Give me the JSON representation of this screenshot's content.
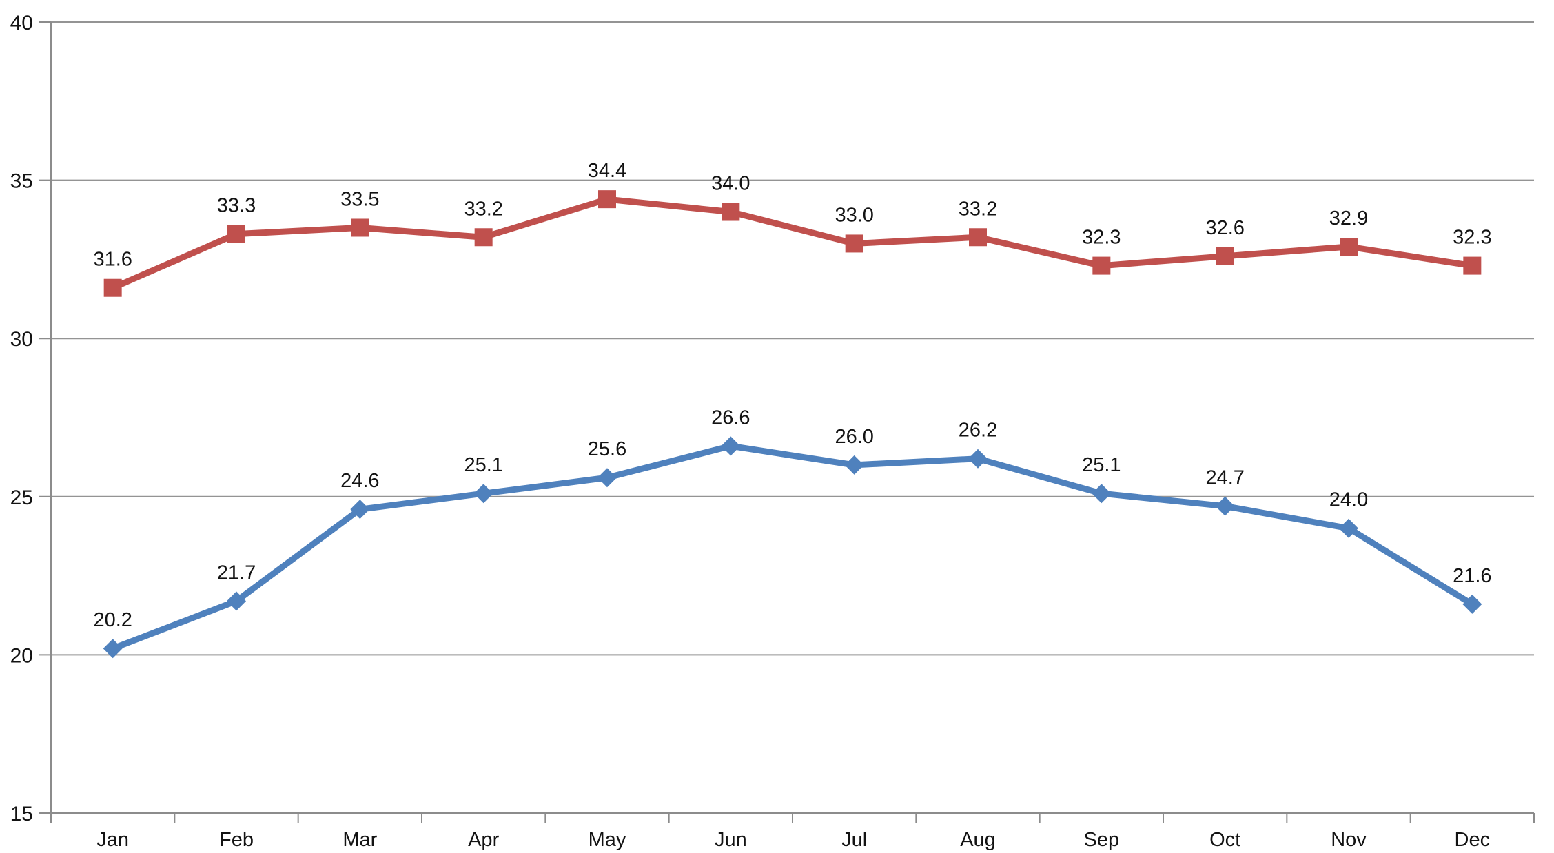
{
  "chart_data": {
    "type": "line",
    "title": "",
    "xlabel": "",
    "ylabel": "",
    "categories": [
      "Jan",
      "Feb",
      "Mar",
      "Apr",
      "May",
      "Jun",
      "Jul",
      "Aug",
      "Sep",
      "Oct",
      "Nov",
      "Dec"
    ],
    "series": [
      {
        "id": "upper-red-squares",
        "marker": "square",
        "color": "#C0504D",
        "values": [
          31.6,
          33.3,
          33.5,
          33.2,
          34.4,
          34.0,
          33.0,
          33.2,
          32.3,
          32.6,
          32.9,
          32.3
        ],
        "labels": [
          "31.6",
          "33.3",
          "33.5",
          "33.2",
          "34.4",
          "34.0",
          "33.0",
          "33.2",
          "32.3",
          "32.6",
          "32.9",
          "32.3"
        ]
      },
      {
        "id": "lower-blue-diamonds",
        "marker": "diamond",
        "color": "#4F81BD",
        "values": [
          20.2,
          21.7,
          24.6,
          25.1,
          25.6,
          26.6,
          26.0,
          26.2,
          25.1,
          24.7,
          24.0,
          21.6
        ],
        "labels": [
          "20.2",
          "21.7",
          "24.6",
          "25.1",
          "25.6",
          "26.6",
          "26.0",
          "26.2",
          "25.1",
          "24.7",
          "24.0",
          "21.6"
        ]
      }
    ],
    "ylim": [
      15,
      40
    ],
    "yticks": [
      15,
      20,
      25,
      30,
      35,
      40
    ],
    "ytick_labels": [
      "15",
      "20",
      "25",
      "30",
      "35",
      "40"
    ],
    "grid": true,
    "legend": "none",
    "data_label_position": "above",
    "data_label_decimals": 1
  },
  "style": {
    "axis_color": "#8C8C8C",
    "gridline_color": "#949494",
    "tick_color": "#8C8C8C",
    "text_color": "#131313",
    "background_color": "#FFFFFF"
  }
}
